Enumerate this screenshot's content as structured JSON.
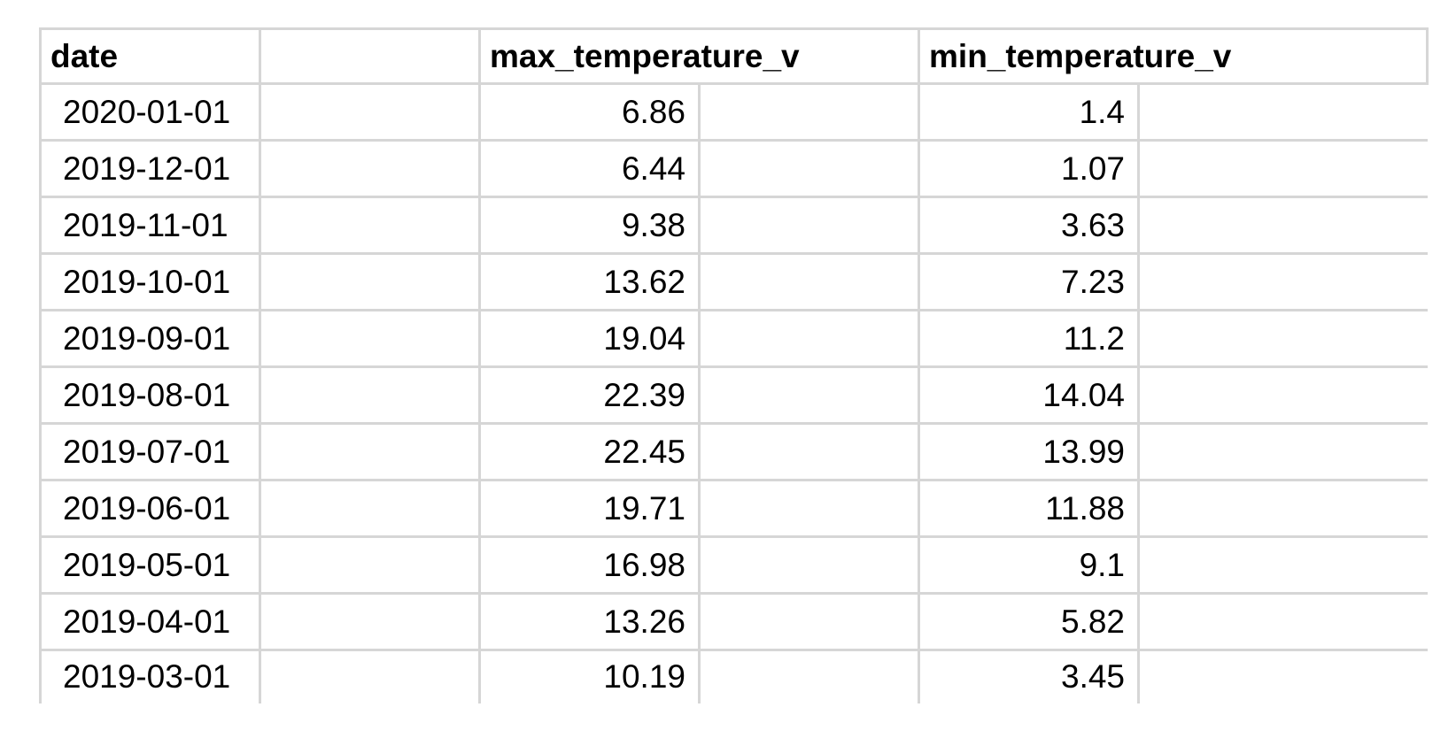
{
  "table": {
    "headers": {
      "date": "date",
      "blank": "",
      "max": "max_temperature_v",
      "min": "min_temperature_v"
    },
    "rows": [
      {
        "date": "2020-01-01",
        "max": "6.86",
        "min": "1.4"
      },
      {
        "date": "2019-12-01",
        "max": "6.44",
        "min": "1.07"
      },
      {
        "date": "2019-11-01",
        "max": "9.38",
        "min": "3.63"
      },
      {
        "date": "2019-10-01",
        "max": "13.62",
        "min": "7.23"
      },
      {
        "date": "2019-09-01",
        "max": "19.04",
        "min": "11.2"
      },
      {
        "date": "2019-08-01",
        "max": "22.39",
        "min": "14.04"
      },
      {
        "date": "2019-07-01",
        "max": "22.45",
        "min": "13.99"
      },
      {
        "date": "2019-06-01",
        "max": "19.71",
        "min": "11.88"
      },
      {
        "date": "2019-05-01",
        "max": "16.98",
        "min": "9.1"
      },
      {
        "date": "2019-04-01",
        "max": "13.26",
        "min": "5.82"
      },
      {
        "date": "2019-03-01",
        "max": "10.19",
        "min": "3.45"
      }
    ]
  },
  "colors": {
    "grid": "#d6d6d6",
    "text": "#000000",
    "background": "#ffffff"
  }
}
